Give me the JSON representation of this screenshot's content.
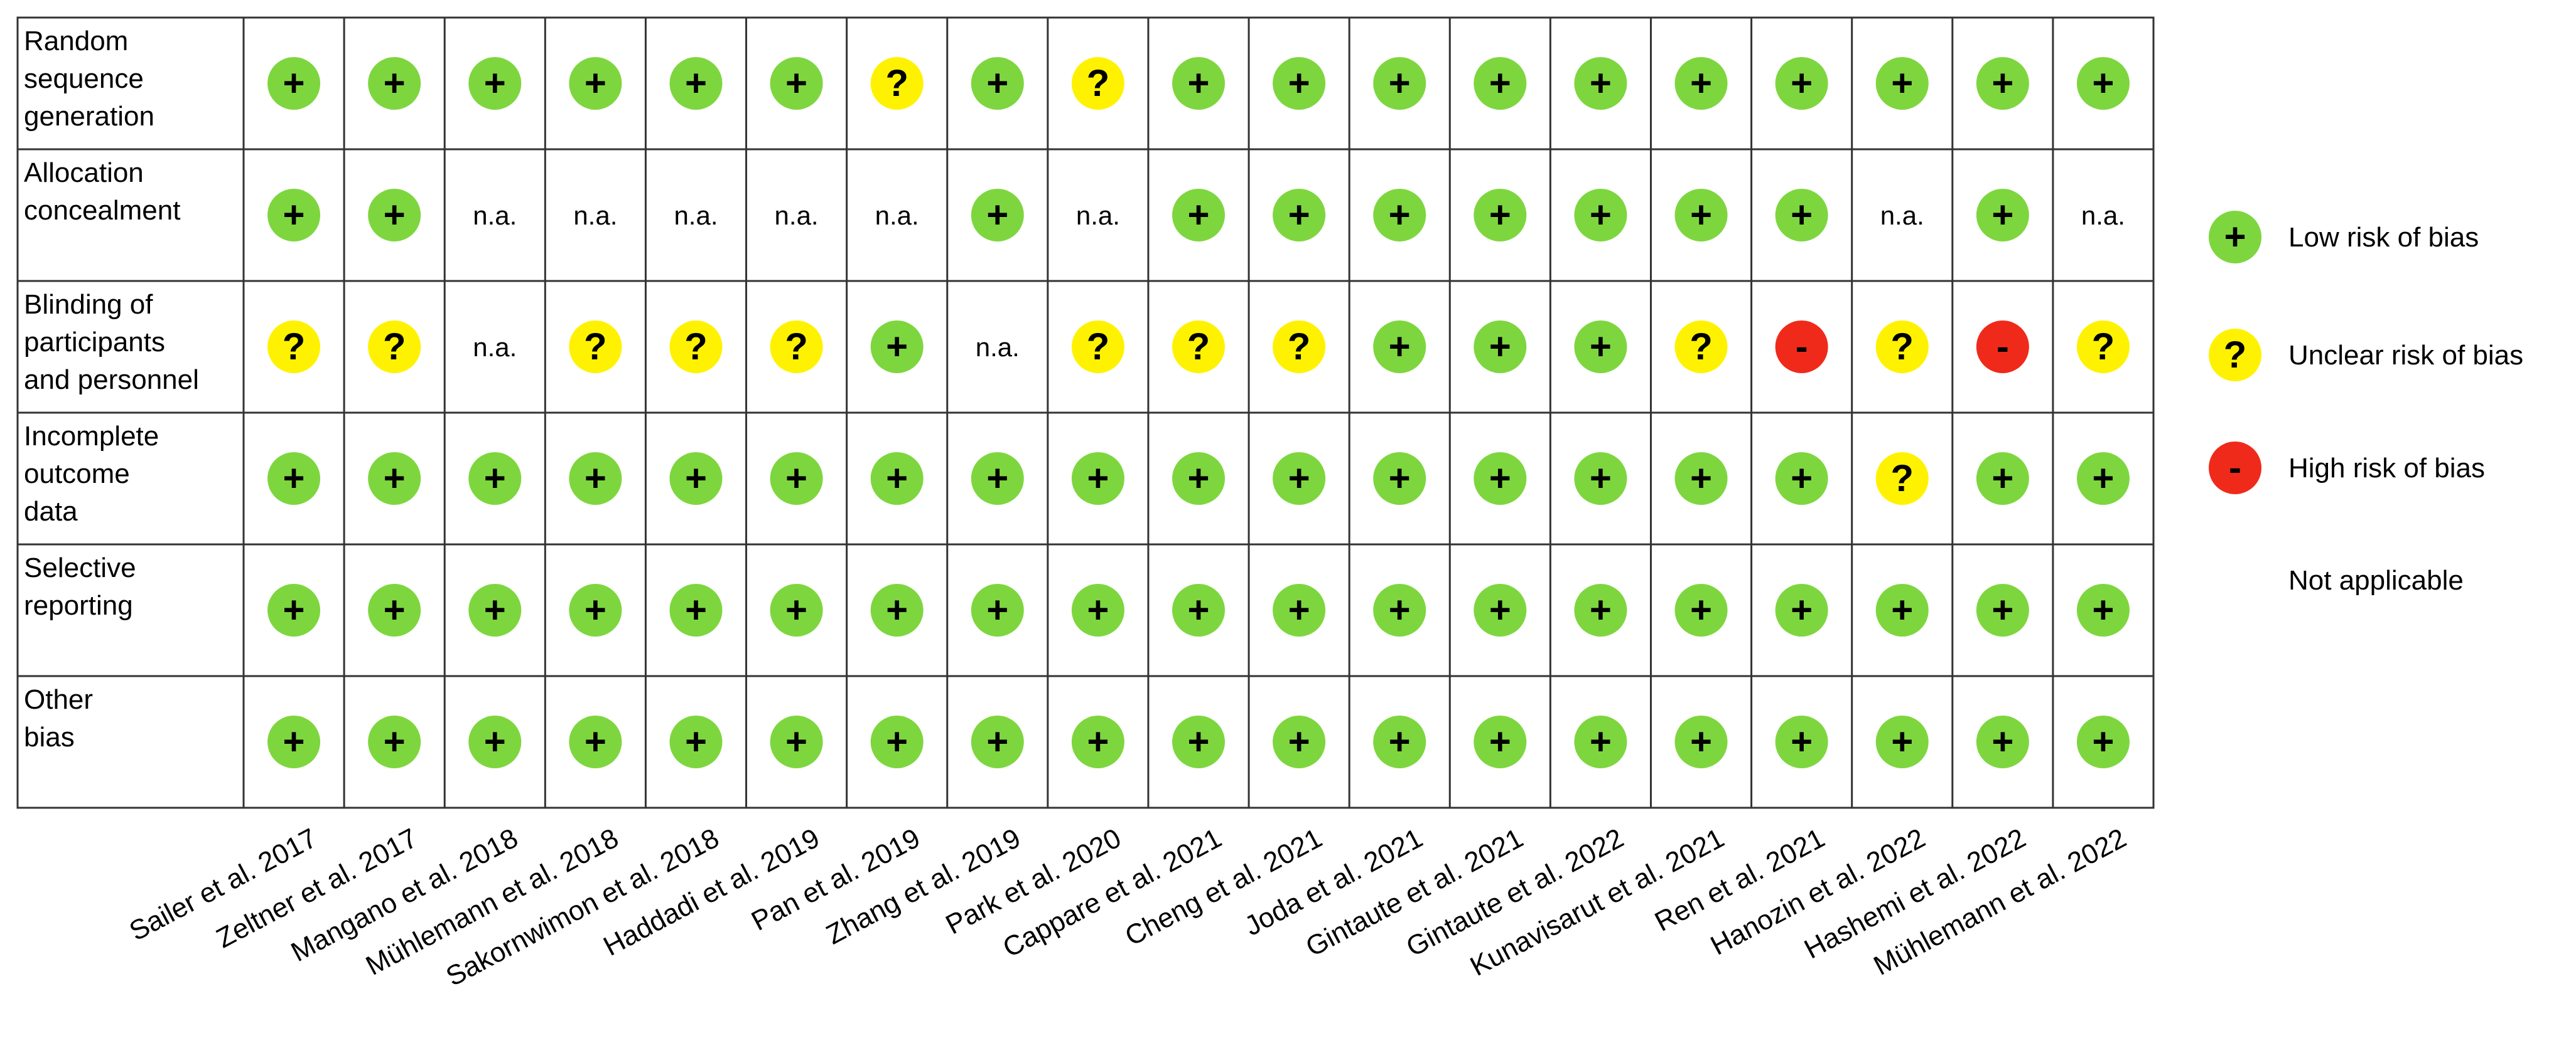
{
  "chart_data": {
    "type": "table",
    "rows": [
      [
        "Random",
        "sequence",
        "generation"
      ],
      [
        "Allocation",
        "concealment"
      ],
      [
        "Blinding of",
        "participants",
        "and personnel"
      ],
      [
        "Incomplete",
        "outcome",
        "data"
      ],
      [
        "Selective",
        "reporting"
      ],
      [
        "Other",
        "bias"
      ]
    ],
    "columns": [
      "Sailer et al. 2017",
      "Zeltner et al. 2017",
      "Mangano et al. 2018",
      "Mühlemann et al. 2018",
      "Sakornwimon et al. 2018",
      "Haddadi et al. 2019",
      "Pan et al. 2019",
      "Zhang et al. 2019",
      "Park et al. 2020",
      "Cappare et al. 2021",
      "Cheng et al. 2021",
      "Joda et al. 2021",
      "Gintaute et al. 2021",
      "Gintaute et al. 2022",
      "Kunavisarut et al. 2021",
      "Ren et al. 2021",
      "Hanozin et al. 2022",
      "Hashemi et al. 2022",
      "Mühlemann et al. 2022"
    ],
    "cells": [
      [
        "low",
        "low",
        "low",
        "low",
        "low",
        "low",
        "unclear",
        "low",
        "unclear",
        "low",
        "low",
        "low",
        "low",
        "low",
        "low",
        "low",
        "low",
        "low",
        "low"
      ],
      [
        "low",
        "low",
        "na",
        "na",
        "na",
        "na",
        "na",
        "low",
        "na",
        "low",
        "low",
        "low",
        "low",
        "low",
        "low",
        "low",
        "na",
        "low",
        "na"
      ],
      [
        "unclear",
        "unclear",
        "na",
        "unclear",
        "unclear",
        "unclear",
        "low",
        "na",
        "unclear",
        "unclear",
        "unclear",
        "low",
        "low",
        "low",
        "unclear",
        "high",
        "unclear",
        "high",
        "unclear"
      ],
      [
        "low",
        "low",
        "low",
        "low",
        "low",
        "low",
        "low",
        "low",
        "low",
        "low",
        "low",
        "low",
        "low",
        "low",
        "low",
        "low",
        "unclear",
        "low",
        "low"
      ],
      [
        "low",
        "low",
        "low",
        "low",
        "low",
        "low",
        "low",
        "low",
        "low",
        "low",
        "low",
        "low",
        "low",
        "low",
        "low",
        "low",
        "low",
        "low",
        "low"
      ],
      [
        "low",
        "low",
        "low",
        "low",
        "low",
        "low",
        "low",
        "low",
        "low",
        "low",
        "low",
        "low",
        "low",
        "low",
        "low",
        "low",
        "low",
        "low",
        "low"
      ]
    ],
    "na_text": "n.a.",
    "symbols": {
      "low": "+",
      "unclear": "?",
      "high": "-"
    },
    "colors": {
      "low": "#7ed63f",
      "unclear": "#fff200",
      "high": "#f02a1a",
      "grid": "#333333"
    },
    "legend": [
      {
        "key": "low",
        "label": "Low risk of bias"
      },
      {
        "key": "unclear",
        "label": "Unclear risk of bias"
      },
      {
        "key": "high",
        "label": "High risk of bias"
      },
      {
        "key": "na",
        "label": "Not applicable"
      }
    ]
  }
}
